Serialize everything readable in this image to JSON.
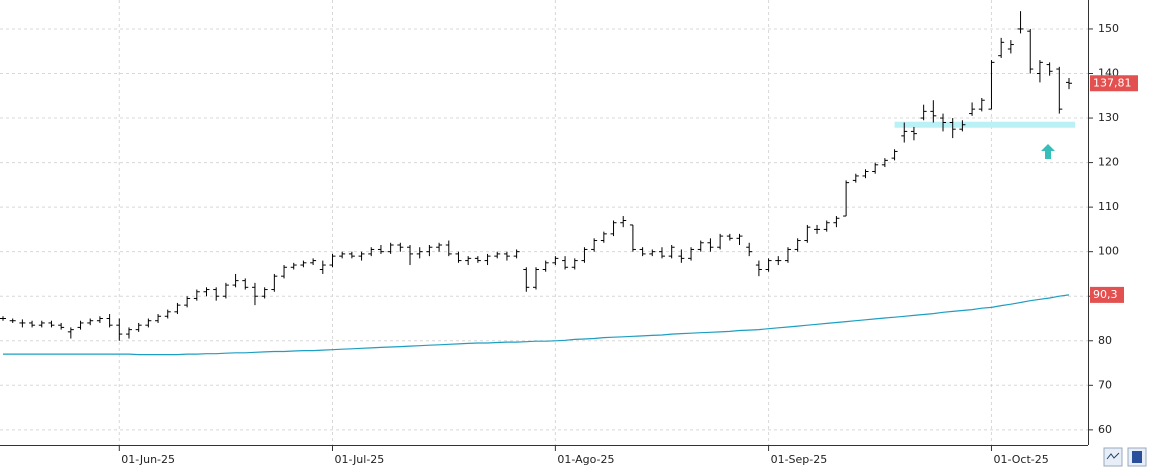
{
  "chart_data": {
    "type": "ohlc",
    "categories": [
      null,
      null,
      null,
      null,
      null,
      null,
      null,
      null,
      null,
      null,
      null,
      null,
      "01-Jun-25",
      null,
      null,
      null,
      null,
      null,
      null,
      null,
      null,
      null,
      null,
      null,
      null,
      null,
      null,
      null,
      null,
      null,
      null,
      null,
      null,
      null,
      "01-Jul-25",
      null,
      null,
      null,
      null,
      null,
      null,
      null,
      null,
      null,
      null,
      null,
      null,
      null,
      null,
      null,
      null,
      null,
      null,
      null,
      null,
      null,
      null,
      "01-Ago-25",
      null,
      null,
      null,
      null,
      null,
      null,
      null,
      null,
      null,
      null,
      null,
      null,
      null,
      null,
      null,
      null,
      null,
      null,
      null,
      null,
      null,
      "01-Sep-25",
      null,
      null,
      null,
      null,
      null,
      null,
      null,
      null,
      null,
      null,
      null,
      null,
      null,
      null,
      null,
      null,
      null,
      null,
      null,
      null,
      null,
      null,
      "01-Oct-25",
      null,
      null,
      null,
      null,
      null,
      null,
      null,
      null
    ],
    "open": [
      85,
      84.5,
      84,
      84,
      83.5,
      84,
      83.5,
      82,
      83,
      84,
      84.5,
      85,
      83.5,
      81.5,
      82.5,
      83.5,
      84.5,
      85.5,
      86.5,
      88,
      89.5,
      91,
      91.5,
      90,
      92.5,
      93.5,
      92,
      90,
      91.5,
      94.5,
      96.5,
      97,
      97.5,
      96,
      97,
      99,
      99.5,
      99,
      99.5,
      100.5,
      100,
      101.5,
      101,
      99.5,
      100,
      101,
      101.5,
      99.5,
      98,
      98.5,
      98,
      99,
      99.5,
      99,
      96,
      92,
      96,
      97.5,
      98,
      96.5,
      98,
      100.5,
      102.5,
      104,
      106.5,
      106,
      100.5,
      99.5,
      100,
      99,
      99,
      98.5,
      100.5,
      102,
      101,
      103.5,
      103,
      101,
      97,
      96,
      98,
      98,
      100.5,
      102.5,
      105,
      105,
      106.5,
      108,
      116,
      117,
      118,
      119.5,
      121,
      126,
      127,
      130,
      131.5,
      130,
      129,
      127.5,
      131,
      132,
      132,
      144,
      145.5,
      150,
      149.5,
      140,
      142,
      141,
      138
    ],
    "high": [
      85.5,
      85,
      84.8,
      84.5,
      84.5,
      84.5,
      84,
      83,
      84.5,
      85,
      85.5,
      86,
      85,
      83,
      84,
      85,
      86,
      87,
      88.5,
      90,
      91.5,
      92,
      92,
      93,
      95,
      94,
      93,
      92,
      95,
      97,
      97.5,
      98,
      98.5,
      98,
      99.5,
      100,
      100,
      100,
      101,
      101.5,
      102,
      102,
      101.5,
      101,
      101.5,
      102,
      102.5,
      100,
      99,
      99,
      99.5,
      100,
      100,
      100.5,
      96.5,
      96.5,
      98,
      99,
      99,
      98.5,
      101,
      103,
      104.5,
      107,
      108,
      106,
      101,
      100.5,
      101,
      101.5,
      100.5,
      101,
      102.5,
      103,
      104,
      104,
      104,
      102,
      98,
      98.5,
      99,
      101,
      103,
      106,
      106,
      107,
      108,
      116,
      117.5,
      118.5,
      120,
      121,
      123,
      129,
      128,
      133,
      134,
      131,
      130,
      129.5,
      133.5,
      134.5,
      143,
      148,
      147.5,
      154,
      150,
      143,
      142.5,
      141.5,
      139
    ],
    "low": [
      84.5,
      84,
      83,
      83,
      83,
      83,
      82.5,
      80.5,
      82.5,
      83.5,
      84,
      83,
      80,
      80.5,
      82,
      83,
      84,
      85,
      86,
      87.5,
      89,
      90,
      89,
      89.5,
      92,
      91.5,
      88,
      89.5,
      91,
      94,
      96,
      96.5,
      97,
      95,
      96.5,
      98.5,
      98.5,
      98,
      99,
      99.5,
      99.5,
      100,
      97,
      98.5,
      99,
      100,
      99,
      97.5,
      97,
      97.5,
      97,
      98.5,
      98,
      98.5,
      91,
      91.5,
      95.5,
      97,
      96,
      96,
      97.5,
      100,
      102,
      103.5,
      105.5,
      100,
      99,
      99,
      98.5,
      98.5,
      97.5,
      98,
      100,
      100,
      100.5,
      102.5,
      101.5,
      99,
      94.5,
      95.5,
      97,
      97.5,
      100,
      102,
      104,
      104.5,
      105.5,
      108,
      115.5,
      116.5,
      117.5,
      119,
      120.5,
      124.5,
      125,
      129.5,
      129,
      127,
      125.5,
      127,
      130.5,
      131.5,
      132,
      143.5,
      144.5,
      149,
      140,
      138,
      139.5,
      131,
      136.5
    ],
    "close": [
      85,
      84.5,
      84,
      83.5,
      84,
      83.5,
      83,
      82.5,
      84,
      84.5,
      85,
      83.5,
      81.5,
      82.5,
      83.5,
      84.5,
      85.5,
      86.5,
      88,
      89.5,
      91,
      91.5,
      90,
      92.5,
      93.5,
      92,
      90,
      91.5,
      94.5,
      96.5,
      97,
      97.5,
      98,
      97,
      99,
      99.5,
      99,
      99.5,
      100.5,
      100,
      101.5,
      101,
      99.5,
      100,
      101,
      101.5,
      99.5,
      98,
      98.5,
      98,
      99,
      99.5,
      99,
      100,
      92,
      96,
      97.5,
      98.5,
      96.5,
      98,
      100.5,
      102.5,
      104,
      106.5,
      107,
      100.5,
      99.5,
      100,
      99,
      101,
      98.5,
      100.5,
      102,
      101,
      103.5,
      103,
      103.5,
      100,
      96,
      98,
      98,
      100.5,
      102.5,
      105.5,
      105,
      106.5,
      107.5,
      115.5,
      117,
      118,
      119.5,
      120.5,
      122.5,
      127,
      126.5,
      131.5,
      130.5,
      129,
      127.5,
      128.5,
      132,
      134,
      142.5,
      147,
      146.5,
      150,
      141,
      142.5,
      140.5,
      132,
      137.81
    ],
    "color": "#000000",
    "moving_average": {
      "color": "#1e9ec2",
      "values": [
        77.0,
        77.0,
        77.0,
        77.0,
        77.0,
        77.0,
        77.0,
        77.0,
        77.0,
        77.0,
        77.0,
        77.0,
        77.0,
        77.0,
        76.9,
        76.9,
        76.9,
        76.9,
        76.9,
        77.0,
        77.0,
        77.1,
        77.1,
        77.2,
        77.3,
        77.3,
        77.4,
        77.5,
        77.6,
        77.6,
        77.7,
        77.8,
        77.8,
        77.9,
        78.0,
        78.1,
        78.2,
        78.3,
        78.4,
        78.5,
        78.6,
        78.7,
        78.8,
        78.9,
        79.0,
        79.1,
        79.2,
        79.3,
        79.4,
        79.5,
        79.5,
        79.6,
        79.7,
        79.7,
        79.8,
        79.9,
        79.9,
        80.0,
        80.1,
        80.3,
        80.4,
        80.5,
        80.7,
        80.8,
        80.9,
        81.0,
        81.1,
        81.2,
        81.3,
        81.5,
        81.6,
        81.7,
        81.8,
        81.9,
        82.0,
        82.1,
        82.3,
        82.4,
        82.5,
        82.7,
        82.9,
        83.1,
        83.3,
        83.5,
        83.7,
        83.9,
        84.1,
        84.3,
        84.5,
        84.7,
        84.9,
        85.1,
        85.3,
        85.5,
        85.7,
        85.9,
        86.1,
        86.4,
        86.6,
        86.8,
        87.0,
        87.3,
        87.5,
        87.9,
        88.2,
        88.6,
        89.0,
        89.3,
        89.6,
        90.0,
        90.3
      ]
    },
    "support_level": {
      "value": 128.5,
      "color": "#b9f1f6"
    },
    "price_tags": [
      {
        "value": 137.81,
        "label": "137,81",
        "color": "#e2504f"
      },
      {
        "value": 90.3,
        "label": "90,3",
        "color": "#e2504f"
      }
    ],
    "ylim": [
      56.6,
      156.5
    ],
    "yticks": [
      60,
      70,
      80,
      90,
      100,
      110,
      120,
      130,
      140,
      150
    ],
    "grid": true
  }
}
